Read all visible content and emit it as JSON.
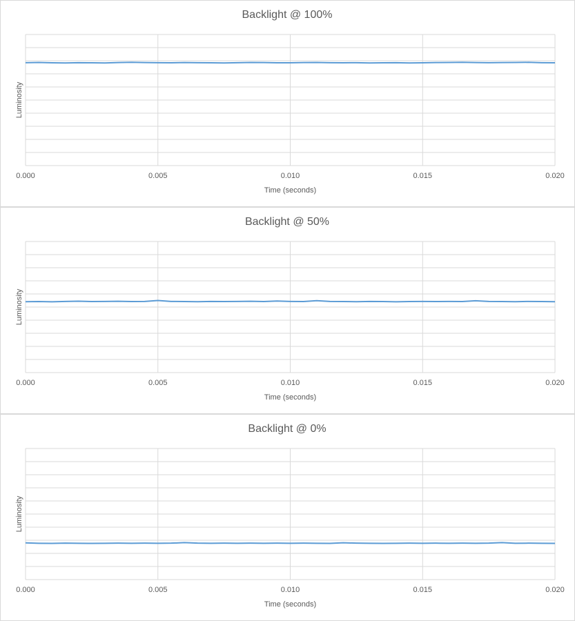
{
  "chart_data": [
    {
      "type": "line",
      "title": "Backlight @ 100%",
      "xlabel": "Time (seconds)",
      "ylabel": "Luminosity",
      "x": [
        0,
        0.0005,
        0.001,
        0.0015,
        0.002,
        0.0025,
        0.003,
        0.0035,
        0.004,
        0.0045,
        0.005,
        0.0055,
        0.006,
        0.0065,
        0.007,
        0.0075,
        0.008,
        0.0085,
        0.009,
        0.0095,
        0.01,
        0.0105,
        0.011,
        0.0115,
        0.012,
        0.0125,
        0.013,
        0.0135,
        0.014,
        0.0145,
        0.015,
        0.0155,
        0.016,
        0.0165,
        0.017,
        0.0175,
        0.018,
        0.0185,
        0.019,
        0.0195,
        0.02
      ],
      "series": [
        {
          "color": "#5b9bd5",
          "values": [
            7.85,
            7.87,
            7.84,
            7.83,
            7.85,
            7.84,
            7.83,
            7.86,
            7.88,
            7.86,
            7.85,
            7.84,
            7.86,
            7.85,
            7.84,
            7.83,
            7.85,
            7.87,
            7.86,
            7.84,
            7.84,
            7.86,
            7.87,
            7.85,
            7.84,
            7.85,
            7.83,
            7.84,
            7.85,
            7.83,
            7.84,
            7.86,
            7.87,
            7.88,
            7.86,
            7.85,
            7.86,
            7.87,
            7.88,
            7.85,
            7.84
          ]
        }
      ],
      "xlim": [
        0,
        0.02
      ],
      "xticks": [
        {
          "value": 0,
          "label": "0.000"
        },
        {
          "value": 0.005,
          "label": "0.005"
        },
        {
          "value": 0.01,
          "label": "0.010"
        },
        {
          "value": 0.015,
          "label": "0.015"
        },
        {
          "value": 0.02,
          "label": "0.020"
        }
      ],
      "ylim": [
        0,
        10
      ],
      "yticks": [
        0,
        1,
        2,
        3,
        4,
        5,
        6,
        7,
        8,
        9,
        10
      ],
      "ytick_labels": false,
      "grid": true
    },
    {
      "type": "line",
      "title": "Backlight @ 50%",
      "xlabel": "Time (seconds)",
      "ylabel": "Luminosity",
      "x": [
        0,
        0.0005,
        0.001,
        0.0015,
        0.002,
        0.0025,
        0.003,
        0.0035,
        0.004,
        0.0045,
        0.005,
        0.0055,
        0.006,
        0.0065,
        0.007,
        0.0075,
        0.008,
        0.0085,
        0.009,
        0.0095,
        0.01,
        0.0105,
        0.011,
        0.0115,
        0.012,
        0.0125,
        0.013,
        0.0135,
        0.014,
        0.0145,
        0.015,
        0.0155,
        0.016,
        0.0165,
        0.017,
        0.0175,
        0.018,
        0.0185,
        0.019,
        0.0195,
        0.02
      ],
      "series": [
        {
          "color": "#5b9bd5",
          "values": [
            5.41,
            5.42,
            5.4,
            5.43,
            5.45,
            5.42,
            5.43,
            5.44,
            5.42,
            5.43,
            5.5,
            5.43,
            5.42,
            5.41,
            5.43,
            5.42,
            5.43,
            5.44,
            5.42,
            5.46,
            5.43,
            5.42,
            5.49,
            5.43,
            5.42,
            5.41,
            5.43,
            5.42,
            5.4,
            5.42,
            5.43,
            5.42,
            5.43,
            5.42,
            5.48,
            5.43,
            5.42,
            5.41,
            5.43,
            5.42,
            5.41
          ]
        }
      ],
      "xlim": [
        0,
        0.02
      ],
      "xticks": [
        {
          "value": 0,
          "label": "0.000"
        },
        {
          "value": 0.005,
          "label": "0.005"
        },
        {
          "value": 0.01,
          "label": "0.010"
        },
        {
          "value": 0.015,
          "label": "0.015"
        },
        {
          "value": 0.02,
          "label": "0.020"
        }
      ],
      "ylim": [
        0,
        10
      ],
      "yticks": [
        0,
        1,
        2,
        3,
        4,
        5,
        6,
        7,
        8,
        9,
        10
      ],
      "ytick_labels": false,
      "grid": true
    },
    {
      "type": "line",
      "title": "Backlight @ 0%",
      "xlabel": "Time (seconds)",
      "ylabel": "Luminosity",
      "x": [
        0,
        0.0005,
        0.001,
        0.0015,
        0.002,
        0.0025,
        0.003,
        0.0035,
        0.004,
        0.0045,
        0.005,
        0.0055,
        0.006,
        0.0065,
        0.007,
        0.0075,
        0.008,
        0.0085,
        0.009,
        0.0095,
        0.01,
        0.0105,
        0.011,
        0.0115,
        0.012,
        0.0125,
        0.013,
        0.0135,
        0.014,
        0.0145,
        0.015,
        0.0155,
        0.016,
        0.0165,
        0.017,
        0.0175,
        0.018,
        0.0185,
        0.019,
        0.0195,
        0.02
      ],
      "series": [
        {
          "color": "#5b9bd5",
          "values": [
            2.8,
            2.77,
            2.76,
            2.78,
            2.77,
            2.76,
            2.77,
            2.78,
            2.77,
            2.78,
            2.77,
            2.78,
            2.82,
            2.78,
            2.77,
            2.78,
            2.77,
            2.78,
            2.77,
            2.78,
            2.77,
            2.78,
            2.77,
            2.76,
            2.81,
            2.78,
            2.77,
            2.76,
            2.77,
            2.78,
            2.77,
            2.78,
            2.77,
            2.78,
            2.77,
            2.78,
            2.82,
            2.77,
            2.78,
            2.77,
            2.76
          ]
        }
      ],
      "xlim": [
        0,
        0.02
      ],
      "xticks": [
        {
          "value": 0,
          "label": "0.000"
        },
        {
          "value": 0.005,
          "label": "0.005"
        },
        {
          "value": 0.01,
          "label": "0.010"
        },
        {
          "value": 0.015,
          "label": "0.015"
        },
        {
          "value": 0.02,
          "label": "0.020"
        }
      ],
      "ylim": [
        0,
        10
      ],
      "yticks": [
        0,
        1,
        2,
        3,
        4,
        5,
        6,
        7,
        8,
        9,
        10
      ],
      "ytick_labels": false,
      "grid": true
    }
  ]
}
